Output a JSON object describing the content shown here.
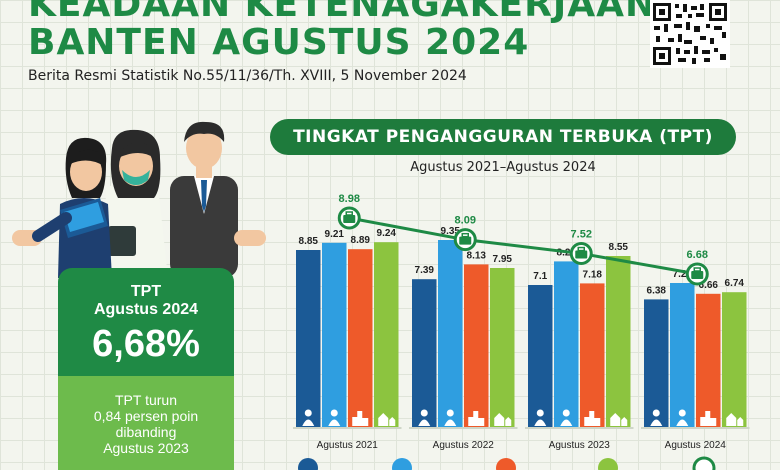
{
  "header": {
    "title_line1": "KEADAAN KETENAGAKERJAAN",
    "title_line2": "BANTEN AGUSTUS 2024",
    "subtitle": "Berita Resmi Statistik No.55/11/36/Th. XVIII, 5 November 2024"
  },
  "summary_card": {
    "label_line1": "TPT",
    "label_line2": "Agustus 2024",
    "value": "6,68%",
    "note_line1": "TPT turun",
    "note_line2": "0,84 persen poin",
    "note_line3": "dibanding",
    "note_line4": "Agustus 2023"
  },
  "chart_data": {
    "type": "bar",
    "title": "TINGKAT PENGANGGURAN TERBUKA (TPT)",
    "subtitle": "Agustus 2021–Agustus 2024",
    "categories": [
      "Agustus 2021",
      "Agustus 2022",
      "Agustus 2023",
      "Agustus 2024"
    ],
    "series": [
      {
        "values": [
          8.85,
          7.39,
          7.1,
          6.38
        ],
        "color": "#1b5a96"
      },
      {
        "values": [
          9.21,
          9.35,
          8.28,
          7.2
        ],
        "color": "#2f9ee0"
      },
      {
        "values": [
          8.89,
          8.13,
          7.18,
          6.66
        ],
        "color": "#ee5a2a"
      },
      {
        "values": [
          9.24,
          7.95,
          8.55,
          6.74
        ],
        "color": "#8cc43f"
      }
    ],
    "value_labels": [
      [
        "8.85",
        "9.21",
        "8.89",
        "9.24"
      ],
      [
        "7.39",
        "9.35",
        "8.13",
        "7.95"
      ],
      [
        "7.1",
        "8.28",
        "7.18",
        "8.55"
      ],
      [
        "6.38",
        "7.20",
        "6.66",
        "6.74"
      ]
    ],
    "tpt_line": {
      "values": [
        8.98,
        8.09,
        7.52,
        6.68
      ],
      "labels": [
        "8.98",
        "8.09",
        "7.52",
        "6.68"
      ],
      "color": "#1e8a45"
    },
    "ylim": [
      0,
      10
    ],
    "grid": false
  },
  "colors": {
    "brand_green": "#1e8a45",
    "banner_green": "#1e7b3c",
    "light_green": "#6dbb4c"
  },
  "icons": {
    "series": [
      "man-icon",
      "woman-icon",
      "city-icon",
      "village-icon"
    ],
    "line_marker": "briefcase-icon"
  }
}
